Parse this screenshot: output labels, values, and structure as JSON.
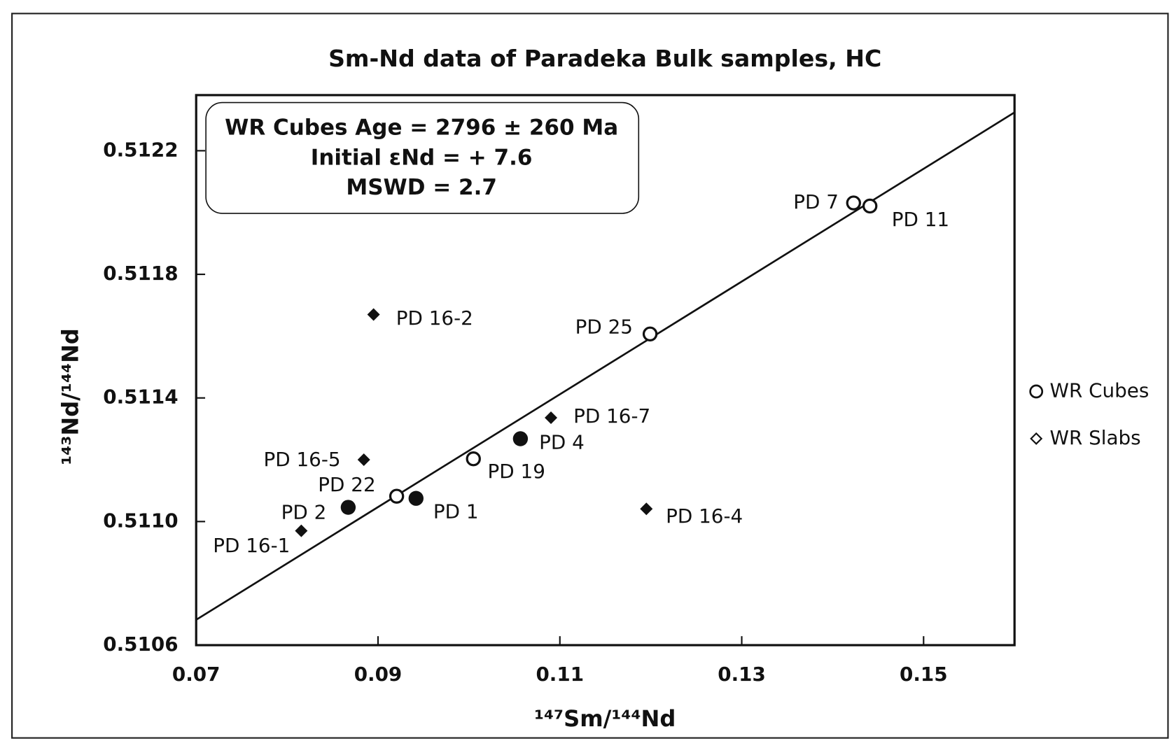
{
  "chart_data": {
    "type": "scatter",
    "title": "Sm-Nd data of Paradeka Bulk samples, HC",
    "x_label": "¹⁴⁷Sm/¹⁴⁴Nd",
    "y_label": "¹⁴³Nd/¹⁴⁴Nd",
    "annotation": [
      "WR Cubes Age = 2796 ± 260 Ma",
      "Initial εNd = + 7.6",
      "MSWD = 2.7"
    ],
    "xlim": [
      0.07,
      0.16
    ],
    "ylim": [
      0.5106,
      0.51238
    ],
    "xticks": [
      0.07,
      0.09,
      0.11,
      0.13,
      0.15
    ],
    "yticks": [
      0.5106,
      {
        "value": 0.511,
        "label": "0.5110"
      },
      0.5114,
      0.5118,
      0.5122
    ],
    "legend": "right",
    "series": [
      {
        "name": "WR Cubes",
        "marker": "circle-open",
        "color": "#111111",
        "x": [
          0.1423,
          0.1441,
          0.11992,
          0.10049,
          0.09205
        ],
        "values": [
          0.512031,
          0.512021,
          0.511607,
          0.511203,
          0.511082
        ],
        "labels": [
          "PD 7",
          "PD 11",
          "PD 25",
          "PD 19",
          "PD 22"
        ]
      },
      {
        "name": "WR Slabs",
        "marker": "diamond",
        "color": "#111111",
        "x": [
          0.08951,
          0.10902,
          0.08844,
          0.08156,
          0.11951
        ],
        "values": [
          0.51167,
          0.511336,
          0.5112,
          0.51097,
          0.511041
        ],
        "labels": [
          "PD 16-2",
          "PD 16-7",
          "PD 16-5",
          "PD 16-1",
          "PD 16-4"
        ]
      },
      {
        "marker": "circle-filled",
        "color": "#111111",
        "x": [
          0.10566,
          0.09418,
          0.08672
        ],
        "values": [
          0.511268,
          0.511075,
          0.511046
        ],
        "labels": [
          "PD 4",
          "PD 1",
          "PD 2"
        ]
      }
    ],
    "fit_line": {
      "color": "#111111",
      "x": [
        0.07,
        0.16
      ],
      "values": [
        0.510682,
        0.512324
      ]
    }
  }
}
